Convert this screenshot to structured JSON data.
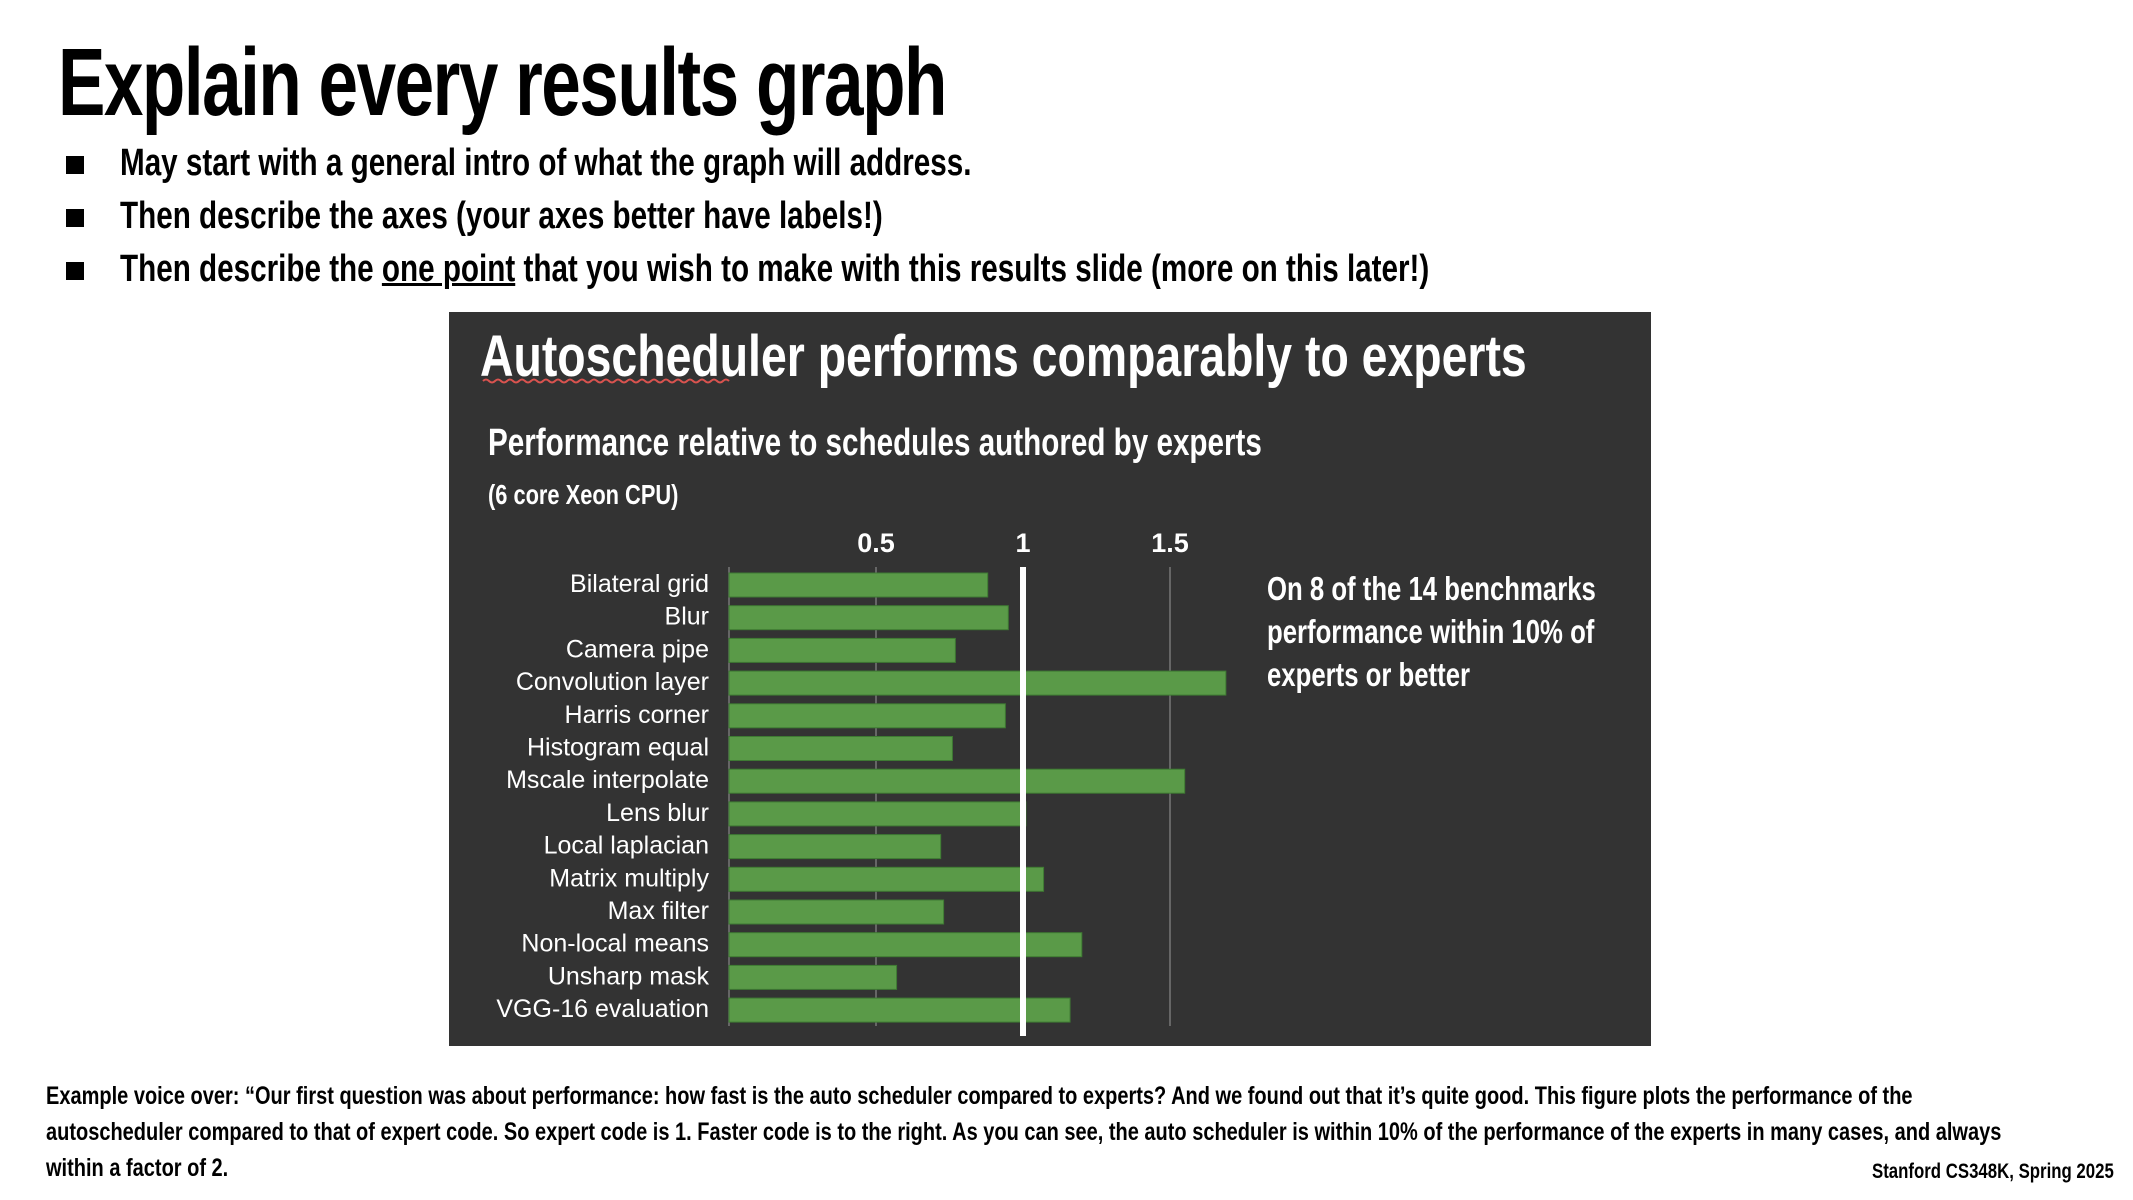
{
  "slide": {
    "title": "Explain every results graph",
    "bullets": [
      {
        "text": "May start with a general intro of what the graph will address."
      },
      {
        "text": "Then describe the axes (your axes better have labels!)"
      },
      {
        "pre": "Then describe the ",
        "emph": "one point",
        "post": " that you wish to make with this results slide (more on this later!)"
      }
    ],
    "voiceover_lines": [
      "Example voice over: “Our first question was about performance: how fast is the auto scheduler compared to experts?   And we found out that it’s quite good. This figure plots the performance of the",
      "autoscheduler compared to that of expert code.  So expert code is 1.  Faster code is to the right.  As you can see, the auto scheduler is within 10% of the performance of the experts in many cases, and always",
      "within a factor of 2."
    ],
    "footer": "Stanford CS348K, Spring 2025"
  },
  "chart_data": {
    "type": "bar",
    "orientation": "horizontal",
    "panel_title": "Autoscheduler performs comparably to experts",
    "title": "Performance relative to schedules authored by experts",
    "subtitle": "(6 core Xeon CPU)",
    "annotation": [
      "On 8 of the 14 benchmarks",
      "performance within 10% of",
      "experts or better"
    ],
    "xticks": [
      0.5,
      1,
      1.5
    ],
    "xtick_labels": [
      "0.5",
      "1",
      "1.5"
    ],
    "xlim": [
      0.0,
      1.8
    ],
    "reference_line": 1,
    "grid": true,
    "categories": [
      "Bilateral grid",
      "Blur",
      "Camera pipe",
      "Convolution layer",
      "Harris corner",
      "Histogram equal",
      "Mscale interpolate",
      "Lens blur",
      "Local laplacian",
      "Matrix multiply",
      "Max filter",
      "Non-local means",
      "Unsharp mask",
      "VGG-16 evaluation"
    ],
    "values": [
      0.88,
      0.95,
      0.77,
      1.69,
      0.94,
      0.76,
      1.55,
      1.01,
      0.72,
      1.07,
      0.73,
      1.2,
      0.57,
      1.16
    ],
    "colors": {
      "panel_bg": "#333333",
      "bar": "#5a9a48",
      "bar_edge": "#3e7a33",
      "reference": "#ffffff",
      "grid": "#777777",
      "text": "#ffffff",
      "spellcheck": "#d9534f"
    }
  }
}
